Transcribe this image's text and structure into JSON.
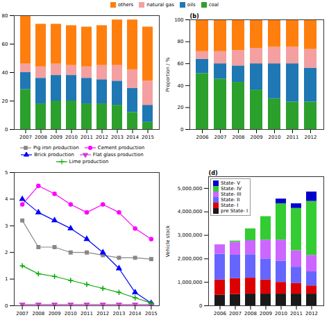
{
  "chart_data": [
    {
      "type": "bar",
      "stacked": true,
      "legend": "top",
      "grid": false,
      "categories": [
        "2007",
        "2008",
        "2009",
        "2010",
        "2011",
        "2012",
        "2013",
        "2014",
        "2015"
      ],
      "series": [
        {
          "name": "coal",
          "color": "#2ca02c",
          "values": [
            28,
            18,
            20,
            20,
            18,
            18,
            17,
            12,
            5
          ]
        },
        {
          "name": "oils",
          "color": "#1f77b4",
          "values": [
            12,
            18,
            18,
            18,
            18,
            17,
            17,
            17,
            12
          ]
        },
        {
          "name": "natural gas",
          "color": "#f4a0a0",
          "values": [
            6,
            8,
            8,
            7,
            8,
            10,
            11,
            13,
            17
          ]
        },
        {
          "name": "others",
          "color": "#ff7f0e",
          "values": [
            34,
            30,
            28,
            28,
            28,
            28,
            32,
            35,
            38
          ]
        }
      ],
      "ylim": [
        0,
        80
      ],
      "yticks": [
        0,
        20,
        40,
        60,
        80
      ]
    },
    {
      "type": "bar",
      "stacked": true,
      "legend": "top",
      "grid": false,
      "ylabel": "Proportion / %",
      "annotations": [
        "(b)"
      ],
      "categories": [
        "2006",
        "2007",
        "2008",
        "2009",
        "2010",
        "2011",
        "2012"
      ],
      "series": [
        {
          "name": "coal",
          "color": "#2ca02c",
          "values": [
            51,
            46,
            43,
            36,
            28,
            25,
            25
          ]
        },
        {
          "name": "oils",
          "color": "#1f77b4",
          "values": [
            13,
            14,
            15,
            24,
            32,
            35,
            31
          ]
        },
        {
          "name": "natural gas",
          "color": "#f4a0a0",
          "values": [
            7,
            11,
            14,
            14,
            15,
            15,
            17
          ]
        },
        {
          "name": "others",
          "color": "#ff7f0e",
          "values": [
            29,
            29,
            28,
            26,
            25,
            25,
            27
          ]
        }
      ],
      "ylim": [
        0,
        100
      ],
      "yticks": [
        0,
        20,
        40,
        60,
        80,
        100
      ]
    },
    {
      "type": "line",
      "legend": "top",
      "grid": false,
      "x": [
        2007,
        2008,
        2009,
        2010,
        2011,
        2012,
        2013,
        2014,
        2015
      ],
      "xlim": [
        2006.5,
        2015.5
      ],
      "xticks": [
        2007,
        2008,
        2009,
        2010,
        2011,
        2012,
        2013,
        2014,
        2015
      ],
      "series": [
        {
          "name": "Pig iron production",
          "color": "#888888",
          "marker": "square",
          "values": [
            3.2,
            2.2,
            2.2,
            2.0,
            2.0,
            1.9,
            1.8,
            1.8,
            1.75
          ]
        },
        {
          "name": "Cement production",
          "color": "#ff00ff",
          "marker": "circle",
          "values": [
            3.8,
            4.5,
            4.2,
            3.8,
            3.5,
            3.8,
            3.5,
            2.9,
            2.5
          ]
        },
        {
          "name": "Brick production",
          "color": "#0000ff",
          "marker": "triangle-up",
          "values": [
            4.0,
            3.5,
            3.2,
            2.9,
            2.5,
            2.0,
            1.4,
            0.5,
            0.1
          ]
        },
        {
          "name": "Flat glass production",
          "color": "#cc44cc",
          "marker": "triangle-down",
          "values": [
            0.05,
            0.05,
            0.05,
            0.05,
            0.05,
            0.05,
            0.05,
            0.05,
            0.05
          ]
        },
        {
          "name": "Lime production",
          "color": "#00aa00",
          "marker": "plus",
          "values": [
            1.5,
            1.2,
            1.1,
            0.95,
            0.8,
            0.65,
            0.5,
            0.3,
            0.1
          ]
        }
      ],
      "ylim": [
        0,
        5
      ],
      "yticks": [
        0,
        1,
        2,
        3,
        4,
        5
      ]
    },
    {
      "type": "bar",
      "stacked": true,
      "legend": "upper left",
      "grid": false,
      "ylabel": "Vehicle stock",
      "annotations": [
        "(d)"
      ],
      "categories": [
        "2006",
        "2007",
        "2008",
        "2009",
        "2010",
        "2011",
        "2012"
      ],
      "series": [
        {
          "name": "pre State- I",
          "color": "#1a1a1a",
          "values": [
            450000,
            480000,
            500000,
            500000,
            500000,
            500000,
            500000
          ]
        },
        {
          "name": "State- I",
          "color": "#dd0000",
          "values": [
            650000,
            680000,
            680000,
            600000,
            500000,
            450000,
            350000
          ]
        },
        {
          "name": "State- II",
          "color": "#6666ff",
          "values": [
            1100000,
            1000000,
            1000000,
            900000,
            900000,
            700000,
            600000
          ]
        },
        {
          "name": "State- III",
          "color": "#cc66ff",
          "values": [
            400000,
            550000,
            600000,
            800000,
            900000,
            700000,
            700000
          ]
        },
        {
          "name": "State- IV",
          "color": "#33cc33",
          "values": [
            0,
            50000,
            500000,
            1000000,
            1550000,
            1800000,
            2300000
          ]
        },
        {
          "name": "State- V",
          "color": "#0000cc",
          "values": [
            0,
            0,
            0,
            0,
            200000,
            200000,
            400000
          ]
        }
      ],
      "ylim": [
        0,
        5500000
      ],
      "yticks": [
        0,
        {
          "value": 1000000,
          "label": "1,000,000"
        },
        {
          "value": 2000000,
          "label": "2,000,000"
        },
        {
          "value": 3000000,
          "label": "3,000,000"
        },
        {
          "value": 4000000,
          "label": "4,000,000"
        },
        {
          "value": 5000000,
          "label": "5,000,000"
        }
      ]
    }
  ]
}
